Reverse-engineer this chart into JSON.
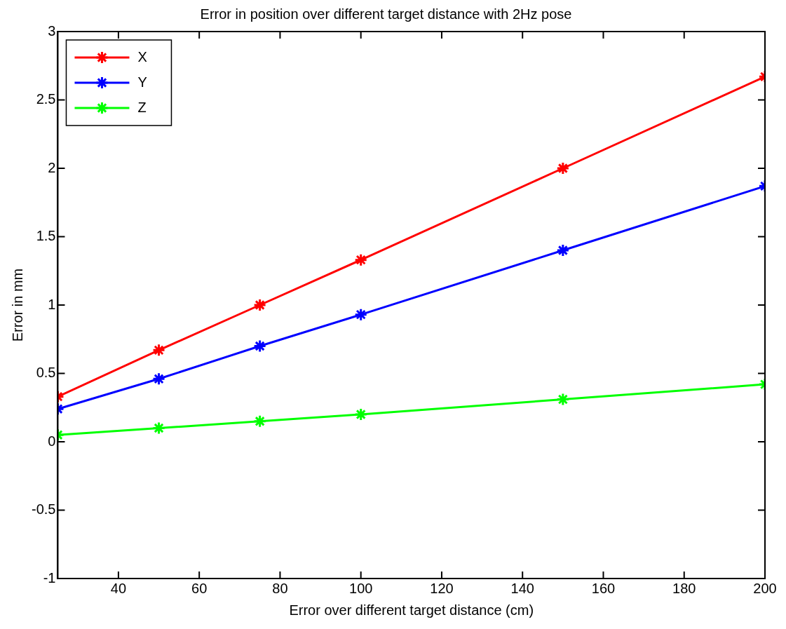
{
  "chart_data": {
    "type": "line",
    "title": "Error in position over different target distance with 2Hz pose",
    "xlabel": "Error over different target distance (cm)",
    "ylabel": "Error in mm",
    "x": [
      25,
      50,
      75,
      100,
      150,
      200
    ],
    "series": [
      {
        "name": "X",
        "color": "#ff0000",
        "values": [
          0.33,
          0.67,
          1.0,
          1.33,
          2.0,
          2.67
        ]
      },
      {
        "name": "Y",
        "color": "#0000ff",
        "values": [
          0.24,
          0.46,
          0.7,
          0.93,
          1.4,
          1.87
        ]
      },
      {
        "name": "Z",
        "color": "#00ff00",
        "values": [
          0.05,
          0.1,
          0.15,
          0.2,
          0.31,
          0.42
        ]
      }
    ],
    "xlim": [
      25,
      200
    ],
    "xticks": [
      40,
      60,
      80,
      100,
      120,
      140,
      160,
      180,
      200
    ],
    "ylim": [
      -1,
      3
    ],
    "yticks": [
      -1,
      -0.5,
      0,
      0.5,
      1,
      1.5,
      2,
      2.5,
      3
    ],
    "grid": false,
    "legend": "top left",
    "marker": "cross",
    "line_style": "solid"
  }
}
